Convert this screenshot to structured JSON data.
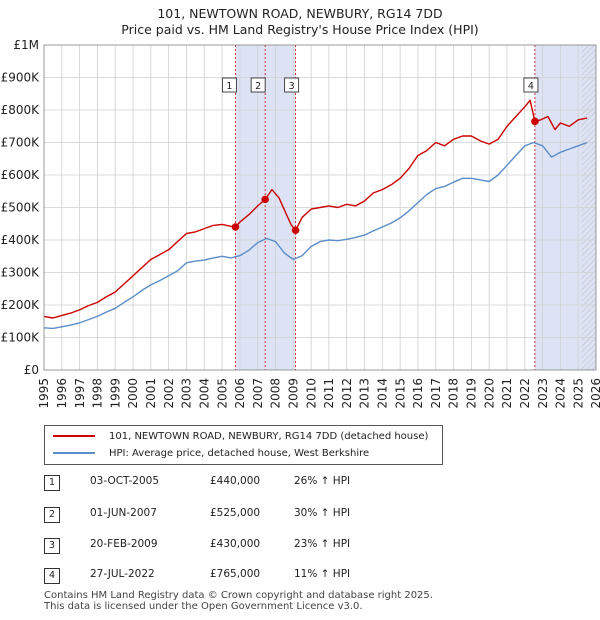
{
  "title_line1": "101, NEWTOWN ROAD, NEWBURY, RG14 7DD",
  "title_line2": "Price paid vs. HM Land Registry's House Price Index (HPI)",
  "colors": {
    "property": "#cc0000",
    "hpi": "#5b8dc9",
    "shade": "#dde3f4",
    "grid": "#d0d0d0",
    "vline": "#cc0000"
  },
  "legend": {
    "property_label": "101, NEWTOWN ROAD, NEWBURY, RG14 7DD (detached house)",
    "hpi_label": "HPI: Average price, detached house, West Berkshire"
  },
  "sales": [
    {
      "num": "1",
      "date": "03-OCT-2005",
      "price": "£440,000",
      "hpi_change": "26% ↑ HPI"
    },
    {
      "num": "2",
      "date": "01-JUN-2007",
      "price": "£525,000",
      "hpi_change": "30% ↑ HPI"
    },
    {
      "num": "3",
      "date": "20-FEB-2009",
      "price": "£430,000",
      "hpi_change": "23% ↑ HPI"
    },
    {
      "num": "4",
      "date": "27-JUL-2022",
      "price": "£765,000",
      "hpi_change": "11% ↑ HPI"
    }
  ],
  "footer_line1": "Contains HM Land Registry data © Crown copyright and database right 2025.",
  "footer_line2": "This data is licensed under the Open Government Licence v3.0.",
  "chart_data": {
    "type": "line",
    "xlim": [
      1995,
      2026
    ],
    "ylim": [
      0,
      1000000
    ],
    "y_ticks": [
      0,
      100000,
      200000,
      300000,
      400000,
      500000,
      600000,
      700000,
      800000,
      900000,
      1000000
    ],
    "y_tick_labels": [
      "£0",
      "£100K",
      "£200K",
      "£300K",
      "£400K",
      "£500K",
      "£600K",
      "£700K",
      "£800K",
      "£900K",
      "£1M"
    ],
    "x_ticks": [
      1995,
      1996,
      1997,
      1998,
      1999,
      2000,
      2001,
      2002,
      2003,
      2004,
      2005,
      2006,
      2007,
      2008,
      2009,
      2010,
      2011,
      2012,
      2013,
      2014,
      2015,
      2016,
      2017,
      2018,
      2019,
      2020,
      2021,
      2022,
      2023,
      2024,
      2025,
      2026
    ],
    "shaded_ranges": [
      [
        2005.75,
        2009.13
      ],
      [
        2022.57,
        2026
      ]
    ],
    "future_hatch_from": 2025.2,
    "sale_markers": [
      {
        "label": "1",
        "x": 2005.75,
        "y": 440000
      },
      {
        "label": "2",
        "x": 2007.42,
        "y": 525000
      },
      {
        "label": "3",
        "x": 2009.13,
        "y": 430000
      },
      {
        "label": "4",
        "x": 2022.57,
        "y": 765000
      }
    ],
    "series": [
      {
        "name": "101, NEWTOWN ROAD, NEWBURY, RG14 7DD (detached house)",
        "color": "#cc0000",
        "x": [
          1995,
          1995.5,
          1996,
          1996.5,
          1997,
          1997.5,
          1998,
          1998.5,
          1999,
          1999.5,
          2000,
          2000.5,
          2001,
          2001.5,
          2002,
          2002.5,
          2003,
          2003.5,
          2004,
          2004.5,
          2005,
          2005.5,
          2005.75,
          2006,
          2006.5,
          2007,
          2007.42,
          2007.8,
          2008.2,
          2008.6,
          2008.9,
          2009.13,
          2009.5,
          2010,
          2010.5,
          2011,
          2011.5,
          2012,
          2012.5,
          2013,
          2013.5,
          2014,
          2014.5,
          2015,
          2015.5,
          2016,
          2016.5,
          2017,
          2017.5,
          2018,
          2018.5,
          2019,
          2019.5,
          2020,
          2020.5,
          2021,
          2021.5,
          2022,
          2022.3,
          2022.57,
          2022.9,
          2023.3,
          2023.7,
          2024,
          2024.5,
          2025,
          2025.5
        ],
        "values": [
          165000,
          160000,
          168000,
          175000,
          185000,
          198000,
          208000,
          225000,
          240000,
          265000,
          290000,
          315000,
          340000,
          355000,
          370000,
          395000,
          420000,
          425000,
          435000,
          445000,
          448000,
          442000,
          440000,
          455000,
          478000,
          505000,
          525000,
          555000,
          530000,
          480000,
          445000,
          430000,
          470000,
          495000,
          500000,
          505000,
          500000,
          510000,
          505000,
          520000,
          545000,
          555000,
          570000,
          590000,
          620000,
          660000,
          675000,
          700000,
          690000,
          710000,
          720000,
          720000,
          705000,
          695000,
          710000,
          750000,
          780000,
          810000,
          830000,
          765000,
          770000,
          780000,
          740000,
          760000,
          750000,
          770000,
          775000
        ]
      },
      {
        "name": "HPI: Average price, detached house, West Berkshire",
        "color": "#5b8dc9",
        "x": [
          1995,
          1995.5,
          1996,
          1996.5,
          1997,
          1997.5,
          1998,
          1998.5,
          1999,
          1999.5,
          2000,
          2000.5,
          2001,
          2001.5,
          2002,
          2002.5,
          2003,
          2003.5,
          2004,
          2004.5,
          2005,
          2005.5,
          2006,
          2006.5,
          2007,
          2007.5,
          2008,
          2008.5,
          2009,
          2009.5,
          2010,
          2010.5,
          2011,
          2011.5,
          2012,
          2012.5,
          2013,
          2013.5,
          2014,
          2014.5,
          2015,
          2015.5,
          2016,
          2016.5,
          2017,
          2017.5,
          2018,
          2018.5,
          2019,
          2019.5,
          2020,
          2020.5,
          2021,
          2021.5,
          2022,
          2022.5,
          2023,
          2023.5,
          2024,
          2024.5,
          2025,
          2025.5
        ],
        "values": [
          130000,
          128000,
          133000,
          138000,
          145000,
          155000,
          165000,
          178000,
          190000,
          208000,
          225000,
          245000,
          262000,
          275000,
          290000,
          305000,
          330000,
          335000,
          338000,
          345000,
          350000,
          345000,
          352000,
          368000,
          392000,
          405000,
          395000,
          360000,
          340000,
          352000,
          380000,
          395000,
          400000,
          398000,
          402000,
          408000,
          415000,
          428000,
          440000,
          452000,
          468000,
          490000,
          515000,
          540000,
          558000,
          565000,
          578000,
          590000,
          590000,
          585000,
          580000,
          600000,
          630000,
          660000,
          690000,
          700000,
          690000,
          655000,
          670000,
          680000,
          690000,
          700000
        ]
      }
    ]
  }
}
